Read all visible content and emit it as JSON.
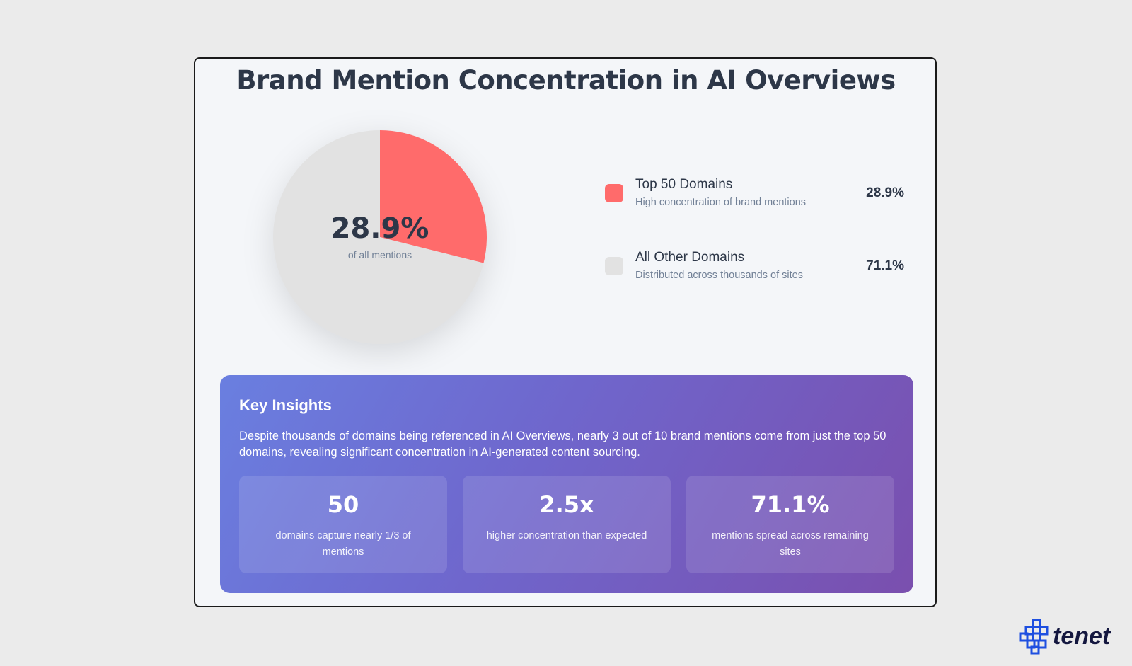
{
  "chart_data": {
    "type": "pie",
    "title": "Brand Mention Concentration in AI Overviews",
    "center_value": "28.9%",
    "center_label": "of all mentions",
    "slices": [
      {
        "name": "Top 50 Domains",
        "description": "High concentration of brand mentions",
        "value": 28.9,
        "label": "28.9%",
        "color": "#ff6b6b"
      },
      {
        "name": "All Other Domains",
        "description": "Distributed across thousands of sites",
        "value": 71.1,
        "label": "71.1%",
        "color": "#e2e2e2"
      }
    ],
    "legend_position": "right"
  },
  "insights": {
    "title": "Key Insights",
    "text": "Despite thousands of domains being referenced in AI Overviews, nearly 3 out of 10 brand mentions come from just the top 50 domains, revealing significant concentration in AI-generated content sourcing.",
    "stats": [
      {
        "value": "50",
        "label": "domains capture nearly 1/3 of mentions"
      },
      {
        "value": "2.5x",
        "label": "higher concentration than expected"
      },
      {
        "value": "71.1%",
        "label": "mentions spread across remaining sites"
      }
    ]
  },
  "logo": {
    "text": "tenet",
    "color": "#1e4fe0"
  }
}
